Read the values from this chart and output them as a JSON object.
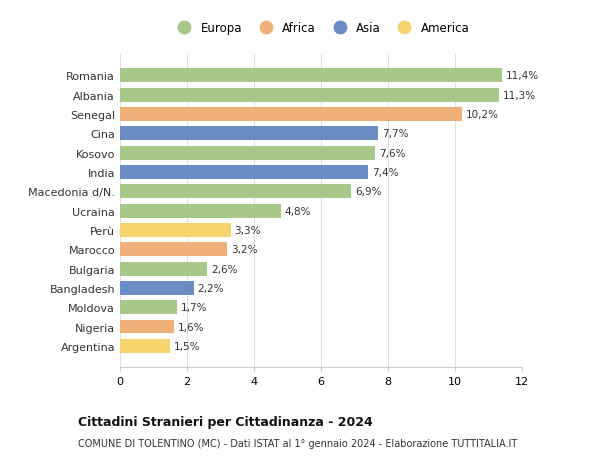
{
  "countries": [
    "Romania",
    "Albania",
    "Senegal",
    "Cina",
    "Kosovo",
    "India",
    "Macedonia d/N.",
    "Ucraina",
    "Perù",
    "Marocco",
    "Bulgaria",
    "Bangladesh",
    "Moldova",
    "Nigeria",
    "Argentina"
  ],
  "values": [
    11.4,
    11.3,
    10.2,
    7.7,
    7.6,
    7.4,
    6.9,
    4.8,
    3.3,
    3.2,
    2.6,
    2.2,
    1.7,
    1.6,
    1.5
  ],
  "labels": [
    "11,4%",
    "11,3%",
    "10,2%",
    "7,7%",
    "7,6%",
    "7,4%",
    "6,9%",
    "4,8%",
    "3,3%",
    "3,2%",
    "2,6%",
    "2,2%",
    "1,7%",
    "1,6%",
    "1,5%"
  ],
  "continents": [
    "Europa",
    "Europa",
    "Africa",
    "Asia",
    "Europa",
    "Asia",
    "Europa",
    "Europa",
    "America",
    "Africa",
    "Europa",
    "Asia",
    "Europa",
    "Africa",
    "America"
  ],
  "colors": {
    "Europa": "#a8c88a",
    "Africa": "#f0b07a",
    "Asia": "#6b8dc4",
    "America": "#f5d46e"
  },
  "legend_order": [
    "Europa",
    "Africa",
    "Asia",
    "America"
  ],
  "title1": "Cittadini Stranieri per Cittadinanza - 2024",
  "title2": "COMUNE DI TOLENTINO (MC) - Dati ISTAT al 1° gennaio 2024 - Elaborazione TUTTITALIA.IT",
  "xlim": [
    0,
    12
  ],
  "xticks": [
    0,
    2,
    4,
    6,
    8,
    10,
    12
  ],
  "background_color": "#ffffff",
  "plot_bg_color": "#ffffff",
  "bar_height": 0.72,
  "label_fontsize": 7.5,
  "ytick_fontsize": 8,
  "xtick_fontsize": 8
}
